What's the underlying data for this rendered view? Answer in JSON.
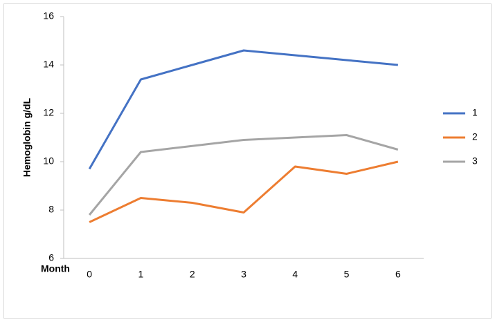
{
  "chart_data": {
    "type": "line",
    "x_label": "Month",
    "y_label": "Hemoglobin g/dL",
    "categories": [
      "0",
      "1",
      "2",
      "3",
      "4",
      "5",
      "6"
    ],
    "series": [
      {
        "name": "1",
        "color": "#4472c4",
        "values": [
          9.7,
          13.4,
          14.0,
          14.6,
          14.4,
          14.2,
          14.0
        ]
      },
      {
        "name": "2",
        "color": "#ed7d31",
        "values": [
          7.5,
          8.5,
          8.3,
          7.9,
          9.8,
          9.5,
          10.0
        ]
      },
      {
        "name": "3",
        "color": "#a5a5a5",
        "values": [
          7.8,
          10.4,
          10.65,
          10.9,
          11.0,
          11.1,
          10.5
        ]
      }
    ],
    "ylim": [
      6,
      16
    ],
    "yticks": [
      6,
      8,
      10,
      12,
      14,
      16
    ],
    "grid": false,
    "legend": "right"
  }
}
